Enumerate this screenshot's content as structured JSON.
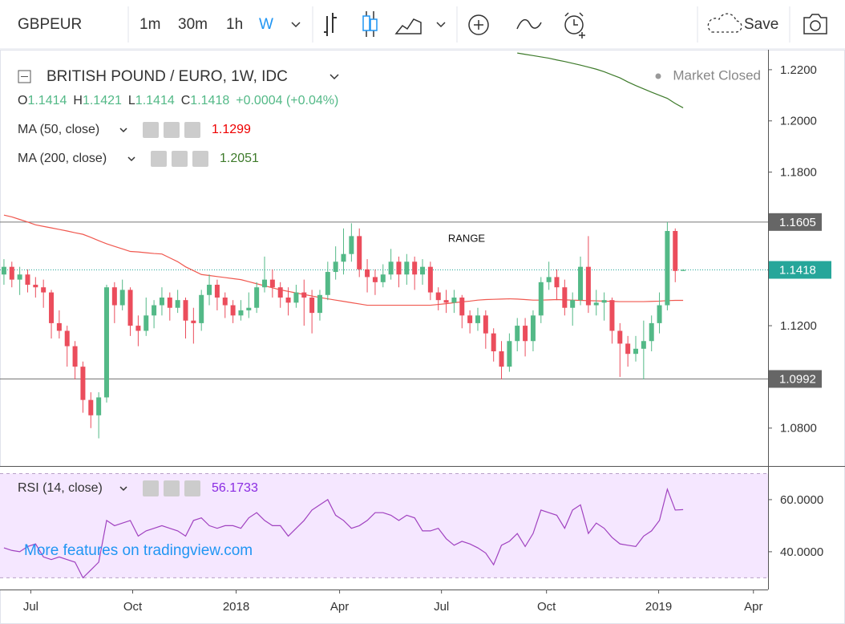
{
  "toolbar": {
    "symbol": "GBPEUR",
    "intervals": [
      "1m",
      "30m",
      "1h",
      "W"
    ],
    "save": "Save"
  },
  "watermark": "More features on tradingview.com",
  "chart_data": {
    "type": "candlestick",
    "title": "BRITISH POUND / EURO, 1W, IDC",
    "status": "Market Closed",
    "ohlc": [
      {
        "label": "O",
        "value": "1.1414"
      },
      {
        "label": "H",
        "value": "1.1421"
      },
      {
        "label": "L",
        "value": "1.1414"
      },
      {
        "label": "C",
        "value": "1.1418"
      }
    ],
    "change": "+0.0004 (+0.04%)",
    "annotation": "RANGE",
    "categories": [
      null,
      null,
      null,
      null,
      null,
      null,
      null,
      null,
      null,
      null,
      null,
      null,
      null,
      null,
      null,
      null,
      null,
      null,
      null,
      null,
      null,
      null,
      null,
      null,
      null,
      null,
      null,
      null,
      null,
      null,
      null,
      null,
      null,
      null,
      null,
      null,
      null,
      null,
      null,
      null,
      null,
      null,
      null,
      null,
      null,
      null,
      null,
      null,
      null,
      null,
      null,
      null,
      null,
      null,
      null,
      null,
      null,
      null,
      null,
      null,
      null,
      null,
      null,
      null,
      null,
      null,
      null,
      null,
      null,
      null,
      null,
      null,
      null,
      null,
      null,
      null,
      null,
      null,
      null,
      null,
      null,
      null,
      null,
      null,
      null,
      null,
      null
    ],
    "open": [
      1.14,
      1.143,
      1.138,
      1.14,
      1.136,
      1.135,
      1.133,
      1.121,
      1.118,
      1.112,
      1.104,
      1.091,
      1.085,
      1.092,
      1.135,
      1.128,
      1.134,
      1.12,
      1.118,
      1.124,
      1.128,
      1.131,
      1.127,
      1.13,
      1.122,
      1.121,
      1.132,
      1.136,
      1.131,
      1.128,
      1.124,
      1.126,
      1.127,
      1.135,
      1.138,
      1.135,
      1.131,
      1.129,
      1.133,
      1.131,
      1.125,
      1.132,
      1.141,
      1.145,
      1.148,
      1.155,
      1.142,
      1.139,
      1.137,
      1.14,
      1.145,
      1.14,
      1.145,
      1.14,
      1.143,
      1.133,
      1.13,
      1.129,
      1.131,
      1.124,
      1.121,
      1.124,
      1.117,
      1.11,
      1.104,
      1.114,
      1.12,
      1.114,
      1.124,
      1.137,
      1.139,
      1.135,
      1.127,
      1.13,
      1.143,
      1.128,
      1.129,
      1.13,
      1.118,
      1.113,
      1.109,
      1.111,
      1.114,
      1.121,
      1.128,
      1.157,
      1.1414
    ],
    "high": [
      1.146,
      1.145,
      1.143,
      1.142,
      1.139,
      1.138,
      1.134,
      1.126,
      1.12,
      1.114,
      1.106,
      1.094,
      1.094,
      1.136,
      1.137,
      1.138,
      1.135,
      1.124,
      1.131,
      1.13,
      1.135,
      1.133,
      1.134,
      1.131,
      1.127,
      1.134,
      1.14,
      1.138,
      1.133,
      1.13,
      1.13,
      1.133,
      1.137,
      1.147,
      1.142,
      1.137,
      1.135,
      1.136,
      1.138,
      1.134,
      1.134,
      1.145,
      1.151,
      1.158,
      1.16,
      1.158,
      1.146,
      1.142,
      1.144,
      1.15,
      1.147,
      1.148,
      1.147,
      1.146,
      1.145,
      1.135,
      1.134,
      1.134,
      1.132,
      1.126,
      1.127,
      1.126,
      1.119,
      1.114,
      1.117,
      1.123,
      1.123,
      1.126,
      1.139,
      1.145,
      1.142,
      1.138,
      1.133,
      1.147,
      1.155,
      1.134,
      1.133,
      1.131,
      1.121,
      1.116,
      1.116,
      1.122,
      1.124,
      1.133,
      1.1605,
      1.158,
      1.1421
    ],
    "low": [
      1.136,
      1.135,
      1.132,
      1.133,
      1.131,
      1.127,
      1.115,
      1.115,
      1.104,
      1.099,
      1.086,
      1.08,
      1.076,
      1.09,
      1.121,
      1.126,
      1.116,
      1.112,
      1.116,
      1.119,
      1.124,
      1.122,
      1.125,
      1.115,
      1.113,
      1.118,
      1.128,
      1.126,
      1.123,
      1.121,
      1.122,
      1.123,
      1.125,
      1.133,
      1.131,
      1.127,
      1.124,
      1.127,
      1.12,
      1.117,
      1.122,
      1.13,
      1.138,
      1.14,
      1.145,
      1.139,
      1.133,
      1.132,
      1.135,
      1.138,
      1.135,
      1.136,
      1.134,
      1.136,
      1.13,
      1.126,
      1.125,
      1.125,
      1.119,
      1.117,
      1.118,
      1.111,
      1.106,
      1.099,
      1.102,
      1.11,
      1.108,
      1.11,
      1.121,
      1.134,
      1.13,
      1.124,
      1.12,
      1.128,
      1.125,
      1.124,
      1.122,
      1.113,
      1.1,
      1.104,
      1.106,
      1.099,
      1.11,
      1.117,
      1.126,
      1.137,
      1.1414
    ],
    "close": [
      1.143,
      1.138,
      1.14,
      1.136,
      1.135,
      1.133,
      1.121,
      1.118,
      1.112,
      1.104,
      1.091,
      1.085,
      1.092,
      1.135,
      1.128,
      1.134,
      1.12,
      1.118,
      1.124,
      1.128,
      1.131,
      1.127,
      1.13,
      1.122,
      1.121,
      1.132,
      1.136,
      1.131,
      1.128,
      1.124,
      1.126,
      1.127,
      1.135,
      1.138,
      1.135,
      1.131,
      1.129,
      1.133,
      1.131,
      1.125,
      1.132,
      1.141,
      1.145,
      1.148,
      1.155,
      1.142,
      1.139,
      1.137,
      1.14,
      1.145,
      1.14,
      1.145,
      1.14,
      1.143,
      1.133,
      1.13,
      1.129,
      1.131,
      1.124,
      1.121,
      1.124,
      1.117,
      1.11,
      1.104,
      1.114,
      1.12,
      1.114,
      1.124,
      1.137,
      1.139,
      1.135,
      1.127,
      1.13,
      1.143,
      1.128,
      1.129,
      1.13,
      1.118,
      1.113,
      1.109,
      1.111,
      1.114,
      1.121,
      1.128,
      1.157,
      1.1414,
      1.1418
    ],
    "up_color": "#53b987",
    "down_color": "#eb4d5c",
    "xlim": [
      -0.5,
      96.75
    ],
    "xticks": [
      {
        "value": 3.4,
        "label": "Jul"
      },
      {
        "value": 16.3,
        "label": "Oct"
      },
      {
        "value": 29.4,
        "label": "2018"
      },
      {
        "value": 42.5,
        "label": "Apr"
      },
      {
        "value": 55.4,
        "label": "Jul"
      },
      {
        "value": 68.7,
        "label": "Oct"
      },
      {
        "value": 82.9,
        "label": "2019"
      },
      {
        "value": 94.9,
        "label": "Apr"
      }
    ],
    "ylim": [
      1.0652,
      1.2278
    ],
    "yticks": [
      {
        "value": 1.22,
        "label": "1.2200"
      },
      {
        "value": 1.2,
        "label": "1.2000"
      },
      {
        "value": 1.18,
        "label": "1.1800"
      },
      {
        "value": 1.12,
        "label": "1.1200"
      },
      {
        "value": 1.08,
        "label": "1.0800"
      }
    ],
    "hlines": [
      1.1605,
      1.0992
    ],
    "current": 1.1418,
    "current_color": "#26a69a",
    "series": [
      {
        "name": "MA (50, close)",
        "value_label": "1.1299",
        "color": "#f0584f",
        "values": [
          1.1632,
          1.1625,
          1.1615,
          1.1605,
          1.1594,
          1.1588,
          1.1582,
          1.1576,
          1.157,
          1.1563,
          1.1557,
          1.1545,
          1.1532,
          1.152,
          1.151,
          1.15,
          1.149,
          1.1488,
          1.1485,
          1.1482,
          1.148,
          1.1465,
          1.145,
          1.143,
          1.1415,
          1.14,
          1.1396,
          1.1392,
          1.1388,
          1.1384,
          1.138,
          1.1372,
          1.1364,
          1.1356,
          1.1348,
          1.134,
          1.1334,
          1.1328,
          1.1322,
          1.1316,
          1.131,
          1.1305,
          1.13,
          1.1295,
          1.129,
          1.1285,
          1.128,
          1.128,
          1.128,
          1.128,
          1.128,
          1.128,
          1.128,
          1.128,
          1.128,
          1.1283,
          1.1286,
          1.129,
          1.1293,
          1.1296,
          1.13,
          1.1302,
          1.1303,
          1.1304,
          1.1305,
          1.1304,
          1.1302,
          1.13,
          1.13,
          1.1301,
          1.1302,
          1.1301,
          1.13,
          1.1299,
          1.1298,
          1.1297,
          1.1296,
          1.1295,
          1.1294,
          1.1294,
          1.1294,
          1.1294,
          1.1295,
          1.1296,
          1.1298,
          1.1299,
          1.1299
        ]
      },
      {
        "name": "MA (200, close)",
        "value_label": "1.2051",
        "color": "#3d7a2a",
        "values": [
          null,
          null,
          null,
          null,
          null,
          null,
          null,
          null,
          null,
          null,
          null,
          null,
          null,
          null,
          null,
          null,
          null,
          null,
          null,
          null,
          null,
          null,
          null,
          null,
          null,
          null,
          null,
          null,
          null,
          null,
          null,
          null,
          null,
          null,
          null,
          null,
          null,
          null,
          null,
          null,
          null,
          null,
          null,
          null,
          null,
          null,
          null,
          null,
          null,
          null,
          null,
          null,
          null,
          null,
          null,
          null,
          null,
          null,
          null,
          null,
          null,
          null,
          null,
          null,
          null,
          1.2265,
          1.226,
          1.2255,
          1.225,
          1.2245,
          1.2238,
          1.2232,
          1.2225,
          1.2218,
          1.221,
          1.2202,
          1.2192,
          1.218,
          1.2168,
          1.2152,
          1.2138,
          1.2125,
          1.2112,
          1.21,
          1.2088,
          1.2068,
          1.2051
        ]
      }
    ],
    "rsi": {
      "name": "RSI (14, close)",
      "value_label": "56.1733",
      "color": "#a042c0",
      "values": [
        41.5,
        40.5,
        40,
        42,
        43,
        38,
        37,
        38,
        37,
        36,
        30,
        33,
        36,
        52,
        50,
        51,
        52,
        46,
        48,
        49,
        50,
        49,
        48,
        46,
        52,
        53,
        50,
        49,
        50,
        50,
        49,
        53,
        55,
        52,
        50,
        50,
        46,
        49,
        52,
        56,
        58,
        60,
        54,
        52,
        49,
        50,
        52,
        55,
        55,
        54,
        52,
        54,
        53,
        48,
        48,
        49,
        45,
        42.5,
        44,
        43,
        41.5,
        39.5,
        35,
        42.5,
        44,
        47,
        42,
        47,
        56,
        55,
        54,
        49,
        56,
        58,
        47,
        51,
        49,
        45.5,
        43,
        42.5,
        42,
        46,
        48,
        52,
        64,
        56,
        56.1733
      ],
      "ylim": [
        25.5,
        72.6
      ],
      "yticks": [
        {
          "value": 60,
          "label": "60.0000"
        },
        {
          "value": 40,
          "label": "40.0000"
        }
      ],
      "bands": [
        30,
        70
      ]
    }
  }
}
